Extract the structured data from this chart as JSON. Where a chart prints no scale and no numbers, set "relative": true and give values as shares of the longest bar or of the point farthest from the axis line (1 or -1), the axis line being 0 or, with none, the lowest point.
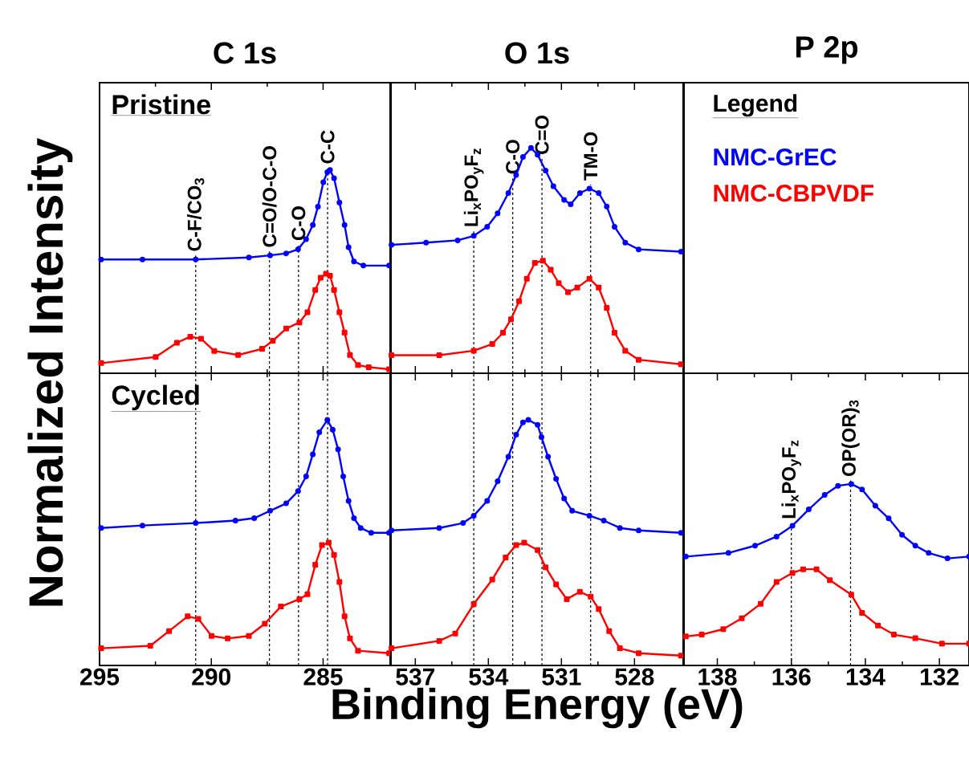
{
  "chart_data": [
    {
      "type": "line",
      "title": "C 1s",
      "ylabel": "Normalized Intensity",
      "annotations": [
        "Pristine"
      ],
      "relative": true,
      "xlim": [
        295,
        282
      ],
      "xticks": [
        295,
        290,
        285
      ],
      "tick_labels": false,
      "ref_lines": [
        {
          "axis": "x",
          "value": 290.7,
          "label": "C-F/CO$_{3}$",
          "color": "#000000",
          "line_style": "dashed"
        },
        {
          "axis": "x",
          "value": 287.4,
          "label": "C=O/O-C-O",
          "color": "#000000",
          "line_style": "dashed"
        },
        {
          "axis": "x",
          "value": 286.1,
          "label": "C-O",
          "color": "#000000",
          "line_style": "dashed"
        },
        {
          "axis": "x",
          "value": 284.8,
          "label": "C-C",
          "color": "#000000",
          "line_style": "dashed"
        }
      ],
      "series": [
        {
          "color": "#0000ff",
          "marker": "circle",
          "x": [
            294.93,
            293.08,
            290.7,
            288.32,
            287.37,
            286.65,
            286.12,
            285.76,
            285.46,
            285.23,
            284.99,
            284.81,
            284.69,
            284.51,
            284.27,
            284.04,
            283.86,
            283.62,
            283.2,
            282.05
          ],
          "values": [
            0.56,
            0.56,
            0.56,
            0.57,
            0.58,
            0.59,
            0.61,
            0.66,
            0.73,
            0.82,
            0.94,
            0.99,
            1.0,
            0.96,
            0.84,
            0.73,
            0.62,
            0.55,
            0.53,
            0.53
          ]
        },
        {
          "color": "#ff0000",
          "marker": "square",
          "x": [
            294.93,
            292.49,
            291.54,
            290.94,
            290.46,
            289.87,
            288.8,
            287.73,
            287.25,
            286.65,
            286.06,
            285.7,
            285.35,
            285.11,
            284.87,
            284.69,
            284.51,
            284.27,
            284.04,
            283.8,
            283.44,
            282.96,
            282.05
          ],
          "values": [
            0.05,
            0.08,
            0.15,
            0.18,
            0.17,
            0.11,
            0.09,
            0.12,
            0.16,
            0.22,
            0.25,
            0.3,
            0.41,
            0.47,
            0.49,
            0.48,
            0.41,
            0.3,
            0.2,
            0.09,
            0.04,
            0.03,
            0.02
          ]
        }
      ]
    },
    {
      "type": "line",
      "title": "O 1s",
      "relative": true,
      "xlim": [
        538,
        526
      ],
      "xticks": [
        537,
        534,
        531,
        528
      ],
      "tick_labels": false,
      "ref_lines": [
        {
          "axis": "x",
          "value": 534.6,
          "label": "Li$_{x}$PO$_{y}$F$_{z}$",
          "color": "#000000",
          "line_style": "dashed"
        },
        {
          "axis": "x",
          "value": 533.0,
          "label": "C-O",
          "color": "#000000",
          "line_style": "dashed"
        },
        {
          "axis": "x",
          "value": 531.8,
          "label": "C=O",
          "color": "#000000",
          "line_style": "dashed"
        },
        {
          "axis": "x",
          "value": 529.8,
          "label": "TM-O",
          "color": "#000000",
          "line_style": "dashed"
        }
      ],
      "series": [
        {
          "color": "#0000ff",
          "marker": "circle",
          "x": [
            537.98,
            536.56,
            535.26,
            534.6,
            534.05,
            533.62,
            533.18,
            532.86,
            532.58,
            532.25,
            531.98,
            531.65,
            531.33,
            530.89,
            530.62,
            530.24,
            529.85,
            529.47,
            529.14,
            528.82,
            528.38,
            527.83,
            526.09
          ],
          "values": [
            0.57,
            0.58,
            0.59,
            0.61,
            0.65,
            0.71,
            0.8,
            0.88,
            0.96,
            1.0,
            0.97,
            0.9,
            0.83,
            0.77,
            0.75,
            0.8,
            0.82,
            0.8,
            0.74,
            0.65,
            0.58,
            0.55,
            0.54
          ]
        },
        {
          "color": "#ff0000",
          "marker": "square",
          "x": [
            537.98,
            536.02,
            534.6,
            533.84,
            533.4,
            533.07,
            532.74,
            532.42,
            532.09,
            531.76,
            531.44,
            531.11,
            530.73,
            530.35,
            529.85,
            529.47,
            529.14,
            528.82,
            528.38,
            527.83,
            526.09
          ],
          "values": [
            0.08,
            0.08,
            0.1,
            0.13,
            0.18,
            0.24,
            0.32,
            0.42,
            0.49,
            0.5,
            0.46,
            0.4,
            0.36,
            0.38,
            0.42,
            0.38,
            0.29,
            0.18,
            0.1,
            0.06,
            0.04
          ]
        }
      ]
    },
    {
      "type": "other",
      "title": "P 2p"
    },
    {
      "type": "line",
      "annotations": [
        "Cycled"
      ],
      "relative": true,
      "xlim": [
        295,
        282
      ],
      "xticks": [
        295,
        290,
        285
      ],
      "tick_labels": "x",
      "ref_lines": [
        {
          "axis": "x",
          "value": 290.7,
          "color": "#000000",
          "line_style": "dashed"
        },
        {
          "axis": "x",
          "value": 287.4,
          "color": "#000000",
          "line_style": "dashed"
        },
        {
          "axis": "x",
          "value": 286.1,
          "color": "#000000",
          "line_style": "dashed"
        },
        {
          "axis": "x",
          "value": 284.8,
          "color": "#000000",
          "line_style": "dashed"
        }
      ],
      "series": [
        {
          "color": "#0000ff",
          "marker": "circle",
          "x": [
            294.93,
            293.08,
            290.7,
            288.92,
            288.08,
            287.37,
            286.65,
            286.12,
            285.76,
            285.46,
            285.17,
            284.81,
            284.57,
            284.33,
            284.1,
            283.86,
            283.62,
            283.32,
            282.85,
            282.05
          ],
          "values": [
            0.56,
            0.57,
            0.58,
            0.59,
            0.6,
            0.63,
            0.66,
            0.71,
            0.77,
            0.86,
            0.95,
            1.0,
            0.96,
            0.88,
            0.77,
            0.67,
            0.6,
            0.56,
            0.54,
            0.54
          ]
        },
        {
          "color": "#ff0000",
          "marker": "square",
          "x": [
            294.93,
            292.73,
            291.89,
            291.06,
            290.58,
            289.99,
            289.27,
            288.32,
            287.61,
            286.89,
            286.06,
            285.7,
            285.35,
            285.05,
            284.75,
            284.51,
            284.27,
            284.04,
            283.8,
            283.44,
            282.05
          ],
          "values": [
            0.07,
            0.08,
            0.14,
            0.2,
            0.19,
            0.12,
            0.11,
            0.12,
            0.17,
            0.24,
            0.27,
            0.29,
            0.41,
            0.49,
            0.5,
            0.45,
            0.34,
            0.2,
            0.11,
            0.06,
            0.05
          ]
        }
      ]
    },
    {
      "type": "line",
      "xlabel": "Binding Energy (eV)",
      "relative": true,
      "xlim": [
        538,
        526
      ],
      "xticks": [
        537,
        534,
        531,
        528
      ],
      "tick_labels": "x",
      "ref_lines": [
        {
          "axis": "x",
          "value": 534.6,
          "color": "#000000",
          "line_style": "dashed"
        },
        {
          "axis": "x",
          "value": 533.0,
          "color": "#000000",
          "line_style": "dashed"
        },
        {
          "axis": "x",
          "value": 531.8,
          "color": "#000000",
          "line_style": "dashed"
        },
        {
          "axis": "x",
          "value": 529.8,
          "color": "#000000",
          "line_style": "dashed"
        }
      ],
      "series": [
        {
          "color": "#0000ff",
          "marker": "circle",
          "x": [
            537.98,
            536.02,
            535.04,
            534.6,
            534.05,
            533.62,
            533.18,
            532.86,
            532.58,
            532.36,
            531.98,
            531.82,
            531.55,
            531.22,
            530.89,
            530.56,
            529.85,
            529.26,
            528.6,
            527.83,
            526.09
          ],
          "values": [
            0.55,
            0.56,
            0.58,
            0.61,
            0.67,
            0.75,
            0.85,
            0.94,
            0.99,
            1.0,
            0.98,
            0.93,
            0.85,
            0.76,
            0.68,
            0.63,
            0.61,
            0.59,
            0.56,
            0.55,
            0.54
          ]
        },
        {
          "color": "#ff0000",
          "marker": "square",
          "x": [
            537.98,
            536.02,
            535.36,
            534.6,
            533.84,
            533.29,
            532.86,
            532.53,
            531.98,
            531.65,
            531.22,
            530.78,
            530.24,
            529.8,
            529.47,
            529.04,
            528.6,
            527.83,
            526.09
          ],
          "values": [
            0.07,
            0.1,
            0.13,
            0.25,
            0.35,
            0.44,
            0.49,
            0.5,
            0.47,
            0.4,
            0.33,
            0.27,
            0.3,
            0.28,
            0.23,
            0.14,
            0.07,
            0.05,
            0.04
          ]
        }
      ]
    },
    {
      "type": "line",
      "relative": true,
      "xlim": [
        138.9,
        131.2
      ],
      "xticks": [
        138,
        136,
        134,
        132
      ],
      "tick_labels": "x",
      "legend": "top left",
      "legend_title": "Legend",
      "ref_lines": [
        {
          "axis": "x",
          "value": 136.0,
          "label": "Li$_{x}$PO$_{y}$F$_{z}$",
          "color": "#000000",
          "line_style": "dashed"
        },
        {
          "axis": "x",
          "value": 134.4,
          "label": "OP(OR)$_{3}$",
          "color": "#000000",
          "line_style": "dashed"
        }
      ],
      "series": [
        {
          "name": "NMC-GrEC",
          "color": "#0000ff",
          "marker": "circle",
          "x": [
            138.85,
            137.7,
            136.98,
            136.4,
            135.97,
            135.53,
            135.1,
            134.74,
            134.38,
            134.09,
            133.73,
            133.37,
            133.01,
            132.65,
            132.29,
            131.78,
            131.2
          ],
          "values": [
            0.6,
            0.62,
            0.66,
            0.71,
            0.77,
            0.86,
            0.94,
            0.99,
            1.0,
            0.97,
            0.88,
            0.81,
            0.72,
            0.66,
            0.62,
            0.59,
            0.6
          ]
        },
        {
          "name": "NMC-CBPVDF",
          "color": "#ff0000",
          "marker": "square",
          "x": [
            138.85,
            138.42,
            137.84,
            137.34,
            136.83,
            136.4,
            135.97,
            135.68,
            135.32,
            134.96,
            134.38,
            134.09,
            133.66,
            133.23,
            132.65,
            131.93,
            131.2
          ],
          "values": [
            0.16,
            0.17,
            0.2,
            0.26,
            0.34,
            0.46,
            0.51,
            0.53,
            0.53,
            0.47,
            0.39,
            0.29,
            0.22,
            0.17,
            0.15,
            0.12,
            0.12
          ]
        }
      ]
    }
  ]
}
